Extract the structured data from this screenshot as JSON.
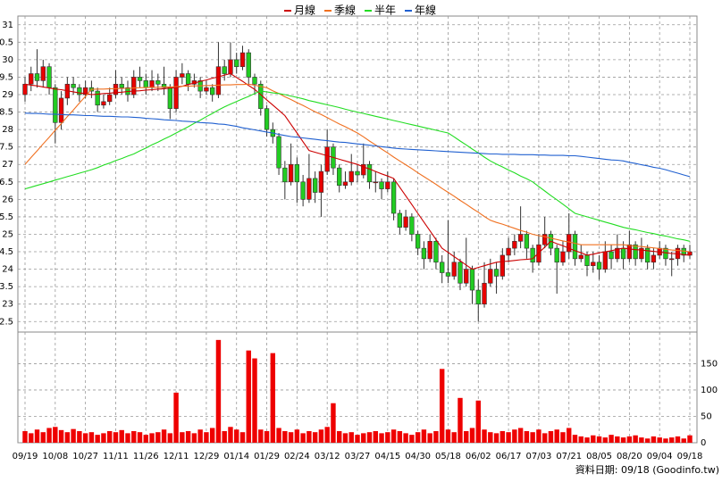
{
  "chart_data": {
    "type": "candlestick",
    "categories": [
      "09/19",
      null,
      null,
      null,
      null,
      "10/08",
      null,
      null,
      null,
      null,
      "10/27",
      null,
      null,
      null,
      null,
      "11/11",
      null,
      null,
      null,
      null,
      "11/26",
      null,
      null,
      null,
      null,
      "12/11",
      null,
      null,
      null,
      null,
      "12/29",
      null,
      null,
      null,
      null,
      "01/14",
      null,
      null,
      null,
      null,
      "01/29",
      null,
      null,
      null,
      null,
      "02/24",
      null,
      null,
      null,
      null,
      "03/12",
      null,
      null,
      null,
      null,
      "03/27",
      null,
      null,
      null,
      null,
      "04/15",
      null,
      null,
      null,
      null,
      "04/30",
      null,
      null,
      null,
      null,
      "05/18",
      null,
      null,
      null,
      null,
      "06/02",
      null,
      null,
      null,
      null,
      "06/17",
      null,
      null,
      null,
      null,
      "07/03",
      null,
      null,
      null,
      null,
      "07/21",
      null,
      null,
      null,
      null,
      "08/05",
      null,
      null,
      null,
      null,
      "08/20",
      null,
      null,
      null,
      null,
      "09/04",
      null,
      null,
      null,
      null,
      "09/18"
    ],
    "ohlc": [
      [
        29.0,
        29.5,
        28.8,
        29.3
      ],
      [
        29.3,
        29.8,
        29.1,
        29.6
      ],
      [
        29.6,
        30.3,
        29.2,
        29.4
      ],
      [
        29.4,
        30.0,
        29.2,
        29.8
      ],
      [
        29.8,
        29.9,
        29.0,
        29.2
      ],
      [
        29.2,
        29.3,
        27.6,
        28.2
      ],
      [
        28.2,
        29.1,
        28.0,
        28.9
      ],
      [
        28.9,
        29.5,
        28.7,
        29.3
      ],
      [
        29.3,
        29.5,
        29.0,
        29.2
      ],
      [
        29.2,
        29.3,
        28.8,
        29.0
      ],
      [
        29.0,
        29.4,
        28.9,
        29.2
      ],
      [
        29.2,
        29.4,
        28.9,
        29.1
      ],
      [
        29.1,
        29.2,
        28.5,
        28.7
      ],
      [
        28.7,
        29.0,
        28.6,
        28.8
      ],
      [
        28.8,
        29.2,
        28.7,
        29.0
      ],
      [
        29.0,
        29.7,
        28.9,
        29.3
      ],
      [
        29.3,
        29.5,
        29.0,
        29.2
      ],
      [
        29.2,
        29.4,
        28.8,
        29.0
      ],
      [
        29.0,
        29.7,
        28.9,
        29.5
      ],
      [
        29.5,
        29.8,
        29.2,
        29.4
      ],
      [
        29.4,
        29.6,
        29.0,
        29.2
      ],
      [
        29.2,
        29.7,
        29.1,
        29.4
      ],
      [
        29.4,
        29.6,
        29.1,
        29.3
      ],
      [
        29.3,
        29.8,
        29.0,
        29.2
      ],
      [
        29.2,
        29.3,
        28.3,
        28.6
      ],
      [
        28.6,
        29.7,
        28.5,
        29.5
      ],
      [
        29.5,
        29.9,
        29.3,
        29.6
      ],
      [
        29.6,
        29.7,
        29.1,
        29.3
      ],
      [
        29.3,
        29.6,
        29.2,
        29.4
      ],
      [
        29.4,
        29.5,
        28.9,
        29.1
      ],
      [
        29.1,
        29.4,
        29.0,
        29.2
      ],
      [
        29.2,
        29.3,
        28.8,
        29.0
      ],
      [
        29.0,
        30.5,
        28.9,
        29.8
      ],
      [
        29.8,
        30.0,
        29.4,
        29.6
      ],
      [
        29.6,
        30.5,
        29.5,
        30.0
      ],
      [
        30.0,
        30.2,
        29.6,
        29.8
      ],
      [
        29.8,
        30.4,
        29.7,
        30.2
      ],
      [
        30.2,
        30.3,
        29.3,
        29.5
      ],
      [
        29.5,
        29.6,
        29.0,
        29.3
      ],
      [
        29.3,
        29.4,
        28.4,
        28.6
      ],
      [
        28.6,
        28.7,
        27.8,
        28.0
      ],
      [
        28.0,
        28.2,
        27.6,
        27.8
      ],
      [
        27.8,
        27.9,
        26.7,
        26.9
      ],
      [
        26.9,
        27.1,
        26.0,
        26.5
      ],
      [
        26.5,
        27.6,
        26.4,
        27.0
      ],
      [
        27.0,
        27.2,
        25.9,
        26.5
      ],
      [
        26.5,
        26.7,
        25.8,
        26.0
      ],
      [
        26.0,
        27.3,
        25.9,
        26.6
      ],
      [
        26.6,
        26.8,
        25.9,
        26.2
      ],
      [
        26.2,
        27.0,
        25.5,
        26.8
      ],
      [
        26.8,
        28.0,
        26.7,
        27.5
      ],
      [
        27.5,
        27.6,
        26.7,
        26.9
      ],
      [
        26.9,
        27.0,
        26.2,
        26.4
      ],
      [
        26.4,
        26.8,
        26.3,
        26.5
      ],
      [
        26.5,
        27.3,
        26.4,
        26.8
      ],
      [
        26.8,
        27.0,
        26.5,
        26.7
      ],
      [
        26.7,
        27.6,
        26.6,
        27.0
      ],
      [
        27.0,
        27.1,
        26.3,
        26.5
      ],
      [
        26.5,
        26.8,
        26.2,
        26.5
      ],
      [
        26.5,
        26.6,
        26.0,
        26.3
      ],
      [
        26.3,
        26.8,
        26.2,
        26.5
      ],
      [
        26.5,
        26.6,
        25.4,
        25.6
      ],
      [
        25.6,
        25.7,
        25.0,
        25.2
      ],
      [
        25.2,
        25.7,
        25.1,
        25.5
      ],
      [
        25.5,
        25.6,
        24.8,
        25.0
      ],
      [
        25.0,
        25.1,
        24.4,
        24.6
      ],
      [
        24.6,
        24.8,
        24.0,
        24.3
      ],
      [
        24.3,
        25.0,
        24.2,
        24.8
      ],
      [
        24.8,
        24.9,
        24.0,
        24.2
      ],
      [
        24.2,
        24.4,
        23.6,
        23.9
      ],
      [
        23.9,
        25.4,
        23.6,
        23.8
      ],
      [
        23.8,
        24.5,
        23.7,
        24.2
      ],
      [
        24.2,
        24.3,
        23.4,
        23.6
      ],
      [
        23.6,
        24.9,
        23.5,
        24.0
      ],
      [
        24.0,
        24.1,
        23.0,
        23.4
      ],
      [
        23.4,
        23.7,
        22.5,
        23.0
      ],
      [
        23.0,
        24.2,
        22.9,
        23.6
      ],
      [
        23.6,
        24.3,
        23.5,
        24.0
      ],
      [
        24.0,
        24.2,
        23.3,
        23.8
      ],
      [
        23.8,
        24.6,
        23.7,
        24.4
      ],
      [
        24.4,
        24.9,
        24.2,
        24.6
      ],
      [
        24.6,
        25.0,
        24.4,
        24.8
      ],
      [
        24.8,
        25.8,
        24.6,
        25.0
      ],
      [
        25.0,
        25.1,
        24.3,
        24.6
      ],
      [
        24.6,
        24.7,
        23.9,
        24.2
      ],
      [
        24.2,
        25.0,
        24.1,
        24.7
      ],
      [
        24.7,
        25.5,
        24.6,
        25.0
      ],
      [
        25.0,
        25.1,
        24.4,
        24.6
      ],
      [
        24.6,
        24.7,
        23.3,
        24.2
      ],
      [
        24.2,
        24.8,
        24.1,
        24.5
      ],
      [
        24.5,
        25.6,
        24.3,
        25.0
      ],
      [
        25.0,
        25.1,
        24.1,
        24.3
      ],
      [
        24.3,
        24.7,
        24.2,
        24.4
      ],
      [
        24.4,
        24.5,
        23.8,
        24.1
      ],
      [
        24.1,
        24.5,
        23.9,
        24.2
      ],
      [
        24.2,
        24.4,
        23.7,
        24.0
      ],
      [
        24.0,
        24.8,
        23.9,
        24.5
      ],
      [
        24.5,
        24.7,
        24.0,
        24.3
      ],
      [
        24.3,
        25.0,
        24.2,
        24.6
      ],
      [
        24.6,
        24.8,
        24.0,
        24.3
      ],
      [
        24.3,
        25.1,
        24.2,
        24.7
      ],
      [
        24.7,
        24.8,
        24.1,
        24.3
      ],
      [
        24.3,
        24.9,
        24.2,
        24.6
      ],
      [
        24.6,
        24.7,
        24.0,
        24.2
      ],
      [
        24.2,
        24.6,
        24.0,
        24.4
      ],
      [
        24.4,
        24.8,
        24.3,
        24.6
      ],
      [
        24.6,
        24.7,
        24.1,
        24.3
      ],
      [
        24.3,
        24.5,
        23.8,
        24.3
      ],
      [
        24.3,
        24.7,
        24.1,
        24.6
      ],
      [
        24.6,
        24.7,
        24.2,
        24.4
      ],
      [
        24.4,
        24.7,
        24.3,
        24.5
      ]
    ],
    "up_color": "#e80000",
    "down_color": "#22cc22",
    "ylim": [
      22.2,
      31.25
    ],
    "yticks": [
      31,
      {
        "value": 30.5,
        "label": "0.5"
      },
      30,
      {
        "value": 29.5,
        "label": "9.5"
      },
      29,
      {
        "value": 28.5,
        "label": "8.5"
      },
      28,
      {
        "value": 27.5,
        "label": "7.5"
      },
      27,
      {
        "value": 26.5,
        "label": "6.5"
      },
      26,
      {
        "value": 25.5,
        "label": "5.5"
      },
      25,
      {
        "value": 24.5,
        "label": "4.5"
      },
      24,
      {
        "value": 23.5,
        "label": "3.5"
      },
      23,
      {
        "value": 22.5,
        "label": "2.5"
      }
    ],
    "grid": true,
    "legend": "top",
    "series": [
      {
        "name": "月線",
        "color": "#cc0000",
        "values": [
          29.3,
          29.27,
          29.25,
          29.22,
          29.19,
          29.16,
          29.14,
          29.11,
          29.08,
          29.05,
          29.03,
          29.0,
          29.01,
          29.03,
          29.04,
          29.06,
          29.07,
          29.09,
          29.1,
          29.11,
          29.13,
          29.14,
          29.16,
          29.17,
          29.19,
          29.2,
          29.24,
          29.29,
          29.33,
          29.38,
          29.42,
          29.47,
          29.51,
          29.56,
          29.6,
          29.49,
          29.38,
          29.26,
          29.15,
          29.0,
          28.85,
          28.7,
          28.55,
          28.4,
          28.15,
          27.9,
          27.65,
          27.4,
          27.35,
          27.3,
          27.25,
          27.2,
          27.15,
          27.1,
          27.05,
          27.0,
          26.93,
          26.87,
          26.8,
          26.73,
          26.67,
          26.6,
          26.35,
          26.1,
          25.85,
          25.6,
          25.35,
          25.1,
          24.85,
          24.6,
          24.48,
          24.36,
          24.24,
          24.12,
          24.0,
          24.05,
          24.1,
          24.15,
          24.2,
          24.22,
          24.23,
          24.25,
          24.27,
          24.28,
          24.3,
          24.47,
          24.63,
          24.8,
          24.73,
          24.67,
          24.6,
          24.53,
          24.47,
          24.4,
          24.43,
          24.47,
          24.5,
          24.53,
          24.57,
          24.6,
          24.58,
          24.56,
          24.55,
          24.53,
          24.51,
          24.49,
          24.47,
          24.45,
          24.44,
          24.42,
          24.4
        ]
      },
      {
        "name": "季線",
        "color": "#f07020",
        "values": [
          27.0,
          27.2,
          27.39,
          27.59,
          27.78,
          27.98,
          28.17,
          28.37,
          28.56,
          28.76,
          28.95,
          29.15,
          29.16,
          29.16,
          29.17,
          29.17,
          29.18,
          29.18,
          29.19,
          29.2,
          29.2,
          29.21,
          29.21,
          29.22,
          29.22,
          29.23,
          29.24,
          29.24,
          29.25,
          29.25,
          29.26,
          29.26,
          29.27,
          29.28,
          29.28,
          29.29,
          29.29,
          29.3,
          29.27,
          29.23,
          29.2,
          29.11,
          29.03,
          28.94,
          28.86,
          28.77,
          28.69,
          28.6,
          28.51,
          28.43,
          28.34,
          28.25,
          28.16,
          28.08,
          27.99,
          27.9,
          27.79,
          27.67,
          27.56,
          27.44,
          27.33,
          27.21,
          27.1,
          26.99,
          26.88,
          26.76,
          26.65,
          26.54,
          26.43,
          26.31,
          26.2,
          26.09,
          25.97,
          25.86,
          25.74,
          25.63,
          25.51,
          25.4,
          25.34,
          25.29,
          25.23,
          25.17,
          25.11,
          25.06,
          25.0,
          24.96,
          24.93,
          24.89,
          24.85,
          24.81,
          24.78,
          24.74,
          24.7,
          24.7,
          24.7,
          24.7,
          24.7,
          24.7,
          24.7,
          24.7,
          24.68,
          24.66,
          24.65,
          24.63,
          24.61,
          24.59,
          24.57,
          24.55,
          24.54,
          24.52,
          24.5
        ]
      },
      {
        "name": "半年",
        "color": "#22dd22",
        "values": [
          26.3,
          26.35,
          26.4,
          26.45,
          26.5,
          26.55,
          26.6,
          26.65,
          26.7,
          26.75,
          26.8,
          26.85,
          26.91,
          26.98,
          27.04,
          27.11,
          27.17,
          27.24,
          27.3,
          27.39,
          27.47,
          27.56,
          27.64,
          27.73,
          27.81,
          27.9,
          27.99,
          28.08,
          28.18,
          28.27,
          28.37,
          28.46,
          28.56,
          28.65,
          28.73,
          28.8,
          28.88,
          28.95,
          29.03,
          29.1,
          29.08,
          29.05,
          29.03,
          29.0,
          28.96,
          28.92,
          28.88,
          28.83,
          28.79,
          28.75,
          28.71,
          28.67,
          28.63,
          28.58,
          28.54,
          28.5,
          28.46,
          28.42,
          28.38,
          28.34,
          28.3,
          28.26,
          28.22,
          28.18,
          28.14,
          28.1,
          28.06,
          28.02,
          27.98,
          27.94,
          27.9,
          27.79,
          27.67,
          27.56,
          27.44,
          27.33,
          27.21,
          27.1,
          27.01,
          26.93,
          26.84,
          26.76,
          26.67,
          26.59,
          26.5,
          26.37,
          26.24,
          26.11,
          25.99,
          25.86,
          25.73,
          25.6,
          25.55,
          25.5,
          25.45,
          25.4,
          25.35,
          25.3,
          25.25,
          25.2,
          25.16,
          25.13,
          25.09,
          25.05,
          25.02,
          24.98,
          24.95,
          24.91,
          24.87,
          24.84,
          24.8
        ]
      },
      {
        "name": "年線",
        "color": "#2060d0",
        "values": [
          28.47,
          28.46,
          28.46,
          28.45,
          28.44,
          28.44,
          28.43,
          28.42,
          28.42,
          28.41,
          28.4,
          28.4,
          28.39,
          28.38,
          28.38,
          28.37,
          28.36,
          28.36,
          28.35,
          28.34,
          28.32,
          28.31,
          28.3,
          28.28,
          28.27,
          28.26,
          28.24,
          28.23,
          28.22,
          28.2,
          28.19,
          28.18,
          28.16,
          28.15,
          28.12,
          28.09,
          28.05,
          28.02,
          27.99,
          27.96,
          27.93,
          27.9,
          27.86,
          27.83,
          27.8,
          27.78,
          27.76,
          27.74,
          27.72,
          27.7,
          27.68,
          27.66,
          27.64,
          27.63,
          27.61,
          27.59,
          27.57,
          27.55,
          27.53,
          27.51,
          27.49,
          27.47,
          27.45,
          27.44,
          27.43,
          27.42,
          27.41,
          27.4,
          27.39,
          27.38,
          27.37,
          27.36,
          27.35,
          27.34,
          27.33,
          27.32,
          27.31,
          27.3,
          27.3,
          27.29,
          27.29,
          27.29,
          27.28,
          27.28,
          27.28,
          27.27,
          27.27,
          27.26,
          27.26,
          27.26,
          27.25,
          27.25,
          27.23,
          27.21,
          27.19,
          27.17,
          27.15,
          27.13,
          27.12,
          27.1,
          27.06,
          27.03,
          26.99,
          26.96,
          26.92,
          26.89,
          26.85,
          26.8,
          26.75,
          26.7,
          26.65
        ]
      }
    ],
    "volume": {
      "color": "#ee0000",
      "ylim": [
        0,
        210
      ],
      "yticks": [
        0,
        50,
        100,
        150
      ],
      "values": [
        22,
        18,
        25,
        20,
        28,
        30,
        24,
        20,
        26,
        22,
        18,
        20,
        15,
        18,
        22,
        20,
        24,
        18,
        22,
        20,
        15,
        18,
        20,
        25,
        18,
        95,
        20,
        22,
        18,
        25,
        20,
        28,
        195,
        22,
        30,
        25,
        20,
        175,
        160,
        25,
        22,
        170,
        28,
        22,
        20,
        25,
        18,
        22,
        20,
        25,
        30,
        75,
        22,
        18,
        20,
        15,
        18,
        20,
        22,
        18,
        20,
        25,
        22,
        18,
        15,
        20,
        25,
        18,
        22,
        140,
        25,
        20,
        85,
        22,
        28,
        80,
        25,
        20,
        18,
        22,
        20,
        25,
        28,
        22,
        20,
        25,
        18,
        22,
        25,
        20,
        28,
        15,
        12,
        10,
        14,
        12,
        10,
        15,
        12,
        10,
        12,
        14,
        10,
        8,
        12,
        10,
        8,
        10,
        12,
        8,
        14
      ]
    }
  },
  "footer": "資料日期: 09/18  (Goodinfo.tw)"
}
